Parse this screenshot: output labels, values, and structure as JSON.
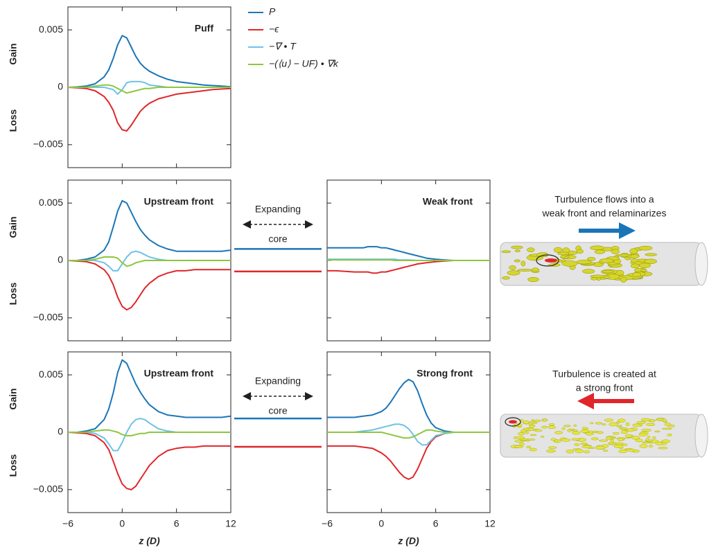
{
  "chart_data": [
    {
      "type": "line",
      "title": "Puff",
      "gain_label": "Gain",
      "loss_label": "Loss",
      "legend": true,
      "xlim": [
        -6,
        12
      ],
      "xticks": [
        -6,
        0,
        6,
        12
      ],
      "show_xtick_labels": false,
      "ylim": [
        -0.007,
        0.007
      ],
      "yticks": [
        {
          "value": -0.005,
          "label": "−0.005"
        },
        0,
        0.005
      ],
      "show_ytick_labels": true,
      "x": [
        -6,
        -5,
        -4,
        -3,
        -2,
        -1.5,
        -1,
        -0.5,
        0,
        0.5,
        1,
        1.5,
        2,
        2.5,
        3,
        4,
        5,
        6,
        7,
        8,
        9,
        10,
        11,
        12
      ],
      "series": [
        {
          "name": "P",
          "color": "#1a75b8",
          "values": [
            0,
            3e-05,
            0.0001,
            0.0003,
            0.0009,
            0.0015,
            0.0025,
            0.0037,
            0.0045,
            0.0043,
            0.0035,
            0.0027,
            0.0021,
            0.0017,
            0.0014,
            0.001,
            0.0007,
            0.0005,
            0.0004,
            0.0003,
            0.0002,
            0.00015,
            0.0001,
            5e-05
          ]
        },
        {
          "name": "−ϵ",
          "color": "#e0262a",
          "values": [
            0,
            -5e-05,
            -0.0001,
            -0.0003,
            -0.0008,
            -0.0013,
            -0.002,
            -0.0031,
            -0.0037,
            -0.0038,
            -0.0033,
            -0.0027,
            -0.0021,
            -0.0017,
            -0.0014,
            -0.001,
            -0.0008,
            -0.0006,
            -0.0005,
            -0.0004,
            -0.0003,
            -0.0002,
            -0.00015,
            -0.0001
          ]
        },
        {
          "name": "−∇ • T",
          "color": "#6ec1e8",
          "values": [
            0,
            0,
            0,
            0,
            0,
            -0.0001,
            -0.0002,
            -0.0006,
            -0.0002,
            0.0004,
            0.0005,
            0.0005,
            0.0005,
            0.0004,
            0.0002,
            0.0001,
            0,
            0,
            0,
            0,
            0,
            0,
            0,
            0
          ]
        },
        {
          "name": "−(⟨u⟩ − UF) • ∇k",
          "color": "#8cc63f",
          "values": [
            0,
            0,
            0,
            0.0001,
            0.0002,
            0.0002,
            0.0001,
            -0.0001,
            -0.0003,
            -0.0005,
            -0.0004,
            -0.0003,
            -0.0002,
            -0.0001,
            -0.0001,
            0,
            0,
            0,
            0,
            0,
            0,
            0,
            0,
            0
          ]
        }
      ]
    },
    {
      "type": "line",
      "title": "Upstream front",
      "gain_label": "Gain",
      "loss_label": "Loss",
      "xlim": [
        -6,
        12
      ],
      "xticks": [
        -6,
        0,
        6,
        12
      ],
      "show_xtick_labels": false,
      "ylim": [
        -0.007,
        0.007
      ],
      "yticks": [
        {
          "value": -0.005,
          "label": "−0.005"
        },
        0,
        0.005
      ],
      "show_ytick_labels": true,
      "core_label": [
        "Expanding",
        "core"
      ],
      "core_values": [
        0.001,
        -0.00096
      ],
      "x": [
        -6,
        -5,
        -4,
        -3,
        -2,
        -1.5,
        -1,
        -0.5,
        0,
        0.5,
        1,
        1.5,
        2,
        2.5,
        3,
        4,
        5,
        6,
        7,
        8,
        9,
        10,
        11,
        12
      ],
      "series": [
        {
          "color": "#1a75b8",
          "values": [
            0,
            0,
            0.0001,
            0.0003,
            0.0009,
            0.0016,
            0.0029,
            0.0043,
            0.0052,
            0.005,
            0.0042,
            0.0034,
            0.0027,
            0.0022,
            0.0018,
            0.0013,
            0.001,
            0.0008,
            0.0008,
            0.0008,
            0.0008,
            0.0008,
            0.0008,
            0.0009
          ]
        },
        {
          "color": "#e0262a",
          "values": [
            0,
            -5e-05,
            -0.0001,
            -0.0003,
            -0.0008,
            -0.0013,
            -0.0021,
            -0.0032,
            -0.004,
            -0.0043,
            -0.0041,
            -0.0036,
            -0.003,
            -0.0024,
            -0.002,
            -0.0014,
            -0.0011,
            -0.0009,
            -0.0009,
            -0.0008,
            -0.0008,
            -0.0008,
            -0.0008,
            -0.0008
          ]
        },
        {
          "color": "#6ec1e8",
          "values": [
            0,
            0,
            0,
            0,
            -0.0002,
            -0.0005,
            -0.0009,
            -0.0009,
            -0.0003,
            0.0003,
            0.0007,
            0.0008,
            0.0007,
            0.0005,
            0.0003,
            0.0001,
            0,
            0,
            0,
            0,
            0,
            0,
            0,
            0
          ]
        },
        {
          "color": "#8cc63f",
          "values": [
            0,
            0,
            0,
            0.0001,
            0.0003,
            0.0003,
            0.0003,
            0.0002,
            -0.0002,
            -0.0005,
            -0.0004,
            -0.0002,
            -0.0001,
            0,
            0,
            0,
            0,
            0,
            0,
            0,
            0,
            0,
            0,
            0
          ]
        }
      ]
    },
    {
      "type": "line",
      "title": "Weak front",
      "xlim": [
        -6,
        12
      ],
      "xticks": [
        -6,
        0,
        6,
        12
      ],
      "show_xtick_labels": false,
      "ylim": [
        -0.007,
        0.007
      ],
      "yticks": [
        -0.005,
        0,
        0.005
      ],
      "show_ytick_labels": false,
      "x": [
        -6,
        -5,
        -4,
        -3,
        -2,
        -1.5,
        -1,
        -0.5,
        0,
        0.5,
        1,
        1.5,
        2,
        2.5,
        3,
        4,
        5,
        6,
        7,
        8,
        9,
        10,
        11,
        12
      ],
      "series": [
        {
          "color": "#1a75b8",
          "values": [
            0.0011,
            0.0011,
            0.0011,
            0.0011,
            0.0011,
            0.0012,
            0.0012,
            0.0012,
            0.0011,
            0.0011,
            0.001,
            0.0009,
            0.0008,
            0.0007,
            0.0006,
            0.0004,
            0.0002,
            0.0001,
            5e-05,
            0,
            0,
            0,
            0,
            0
          ]
        },
        {
          "color": "#e0262a",
          "values": [
            -0.0009,
            -0.0009,
            -0.00095,
            -0.001,
            -0.001,
            -0.001,
            -0.0011,
            -0.0011,
            -0.001,
            -0.001,
            -0.0009,
            -0.0008,
            -0.0007,
            -0.0006,
            -0.0005,
            -0.0003,
            -0.0002,
            -0.0001,
            -5e-05,
            0,
            0,
            0,
            0,
            0
          ]
        },
        {
          "color": "#6ec1e8",
          "values": [
            0.0001,
            0.0001,
            0.0001,
            0.0001,
            0.0001,
            0.0001,
            0.0001,
            0.0001,
            0.0001,
            0.0001,
            0.0001,
            0.0001,
            5e-05,
            5e-05,
            5e-05,
            0,
            0,
            0,
            0,
            0,
            0,
            0,
            0,
            0
          ]
        },
        {
          "color": "#8cc63f",
          "values": [
            5e-05,
            5e-05,
            5e-05,
            5e-05,
            5e-05,
            5e-05,
            5e-05,
            5e-05,
            5e-05,
            5e-05,
            5e-05,
            0,
            0,
            0,
            0,
            0,
            0,
            0,
            0,
            0,
            0,
            0,
            0,
            0
          ]
        }
      ]
    },
    {
      "type": "line",
      "title": "Upstream front",
      "gain_label": "Gain",
      "loss_label": "Loss",
      "xlabel": "z (D)",
      "xlim": [
        -6,
        12
      ],
      "xticks": [
        {
          "value": -6,
          "label": "−6"
        },
        0,
        6,
        12
      ],
      "show_xtick_labels": true,
      "ylim": [
        -0.007,
        0.007
      ],
      "yticks": [
        {
          "value": -0.005,
          "label": "−0.005"
        },
        0,
        0.005
      ],
      "show_ytick_labels": true,
      "core_label": [
        "Expanding",
        "core"
      ],
      "core_values": [
        0.0012,
        -0.00127
      ],
      "x": [
        -6,
        -5,
        -4,
        -3,
        -2,
        -1.5,
        -1,
        -0.5,
        0,
        0.5,
        1,
        1.5,
        2,
        2.5,
        3,
        4,
        5,
        6,
        7,
        8,
        9,
        10,
        11,
        12
      ],
      "series": [
        {
          "color": "#1a75b8",
          "values": [
            0,
            0,
            0.0001,
            0.0003,
            0.0011,
            0.002,
            0.0034,
            0.0052,
            0.0063,
            0.006,
            0.0051,
            0.0042,
            0.0035,
            0.0029,
            0.0024,
            0.0018,
            0.0015,
            0.0014,
            0.0013,
            0.0013,
            0.0013,
            0.0013,
            0.0013,
            0.0014
          ]
        },
        {
          "color": "#e0262a",
          "values": [
            0,
            -5e-05,
            -0.0001,
            -0.0003,
            -0.0009,
            -0.0015,
            -0.0025,
            -0.0036,
            -0.0045,
            -0.0049,
            -0.005,
            -0.0047,
            -0.0041,
            -0.0035,
            -0.0029,
            -0.0021,
            -0.0016,
            -0.0014,
            -0.0013,
            -0.0013,
            -0.0012,
            -0.0012,
            -0.0012,
            -0.0012
          ]
        },
        {
          "color": "#6ec1e8",
          "values": [
            0,
            0,
            0,
            -0.0001,
            -0.0005,
            -0.001,
            -0.0016,
            -0.0016,
            -0.0009,
            0,
            0.0007,
            0.0011,
            0.0012,
            0.0011,
            0.0008,
            0.0003,
            0.0001,
            0,
            0,
            0,
            0,
            0,
            0,
            0
          ]
        },
        {
          "color": "#8cc63f",
          "values": [
            0,
            0,
            0,
            0.0001,
            0.0002,
            0.0002,
            0.0001,
            0,
            -0.0002,
            -0.0003,
            -0.0003,
            -0.0002,
            -0.0001,
            -0.0001,
            0,
            0,
            0,
            0,
            0,
            0,
            0,
            0,
            0,
            0
          ]
        }
      ]
    },
    {
      "type": "line",
      "title": "Strong front",
      "xlabel": "z (D)",
      "xlim": [
        -6,
        12
      ],
      "xticks": [
        {
          "value": -6,
          "label": "−6"
        },
        0,
        6,
        12
      ],
      "show_xtick_labels": true,
      "ylim": [
        -0.007,
        0.007
      ],
      "yticks": [
        -0.005,
        0,
        0.005
      ],
      "show_ytick_labels": false,
      "x": [
        -6,
        -5,
        -4,
        -3,
        -2,
        -1,
        0,
        0.5,
        1,
        1.5,
        2,
        2.5,
        3,
        3.5,
        4,
        4.5,
        5,
        5.5,
        6,
        7,
        8,
        9,
        10,
        11,
        12
      ],
      "series": [
        {
          "color": "#1a75b8",
          "values": [
            0.0013,
            0.0013,
            0.0013,
            0.0013,
            0.0014,
            0.0015,
            0.0018,
            0.0021,
            0.0026,
            0.0032,
            0.0038,
            0.0043,
            0.0046,
            0.0044,
            0.0036,
            0.0025,
            0.0015,
            0.0008,
            0.0004,
            0.0001,
            0,
            0,
            0,
            0,
            0
          ]
        },
        {
          "color": "#e0262a",
          "values": [
            -0.0012,
            -0.0012,
            -0.0012,
            -0.0012,
            -0.0013,
            -0.0014,
            -0.0018,
            -0.0021,
            -0.0025,
            -0.003,
            -0.0035,
            -0.0039,
            -0.0041,
            -0.0039,
            -0.0032,
            -0.0023,
            -0.0014,
            -0.0008,
            -0.0004,
            -0.0001,
            0,
            0,
            0,
            0,
            0
          ]
        },
        {
          "color": "#6ec1e8",
          "values": [
            0,
            0,
            0,
            0,
            0.0001,
            0.0002,
            0.0004,
            0.0005,
            0.0006,
            0.0007,
            0.0007,
            0.0006,
            0.0003,
            -0.0002,
            -0.0008,
            -0.0011,
            -0.0011,
            -0.0007,
            -0.0003,
            -0.0001,
            0,
            0,
            0,
            0,
            0
          ]
        },
        {
          "color": "#8cc63f",
          "values": [
            0,
            0,
            0,
            0,
            0,
            0,
            0,
            -0.0001,
            -0.0002,
            -0.0003,
            -0.0004,
            -0.0005,
            -0.0005,
            -0.0004,
            -0.0002,
            0,
            0.0002,
            0.0002,
            0.0001,
            0,
            0,
            0,
            0,
            0,
            0
          ]
        }
      ]
    }
  ],
  "illustrations": [
    {
      "caption": [
        "Turbulence flows into a",
        "weak front and relaminarizes"
      ]
    },
    {
      "caption": [
        "Turbulence is created at",
        "a strong front"
      ]
    }
  ]
}
